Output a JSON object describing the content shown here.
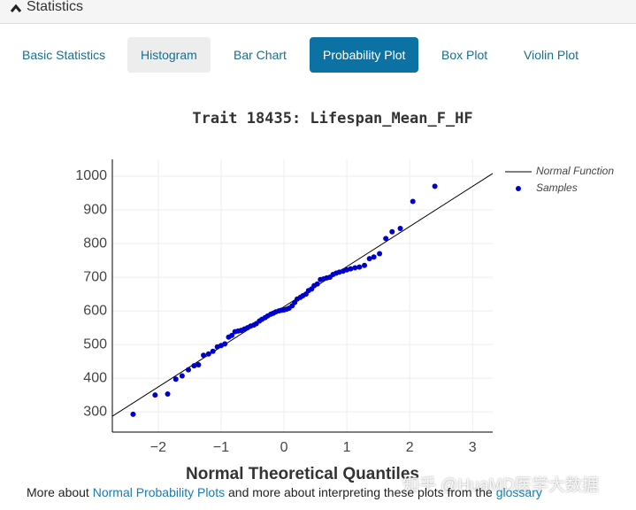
{
  "header": {
    "title": "Statistics"
  },
  "tabs": [
    "Basic Statistics",
    "Histogram",
    "Bar Chart",
    "Probability Plot",
    "Box Plot",
    "Violin Plot"
  ],
  "chart_data": {
    "type": "scatter",
    "title": "Trait 18435: Lifespan_Mean_F_HF",
    "x_label": "Normal Theoretical Quantiles",
    "xlim": [
      -2.73,
      3.32
    ],
    "ylim": [
      240,
      1050
    ],
    "xticks": [
      {
        "value": -2,
        "label": "−2"
      },
      {
        "value": -1,
        "label": "−1"
      },
      0,
      1,
      2,
      3
    ],
    "yticks": [
      300,
      400,
      500,
      600,
      700,
      800,
      900,
      1000
    ],
    "grid": true,
    "legend": "top-right",
    "series": [
      {
        "name": "Normal Function",
        "mode": "lines",
        "color": "#000000",
        "x": [
          -2.73,
          3.32
        ],
        "values": [
          287,
          1008
        ]
      },
      {
        "name": "Samples",
        "mode": "markers",
        "color": "#0000cc",
        "x": [
          -2.4,
          -2.05,
          -1.85,
          -1.72,
          -1.62,
          -1.52,
          -1.43,
          -1.36,
          -1.28,
          -1.2,
          -1.13,
          -1.06,
          -1.0,
          -0.94,
          -0.88,
          -0.83,
          -0.78,
          -0.73,
          -0.68,
          -0.63,
          -0.58,
          -0.53,
          -0.48,
          -0.44,
          -0.39,
          -0.35,
          -0.3,
          -0.26,
          -0.21,
          -0.17,
          -0.13,
          -0.08,
          -0.04,
          0,
          0.04,
          0.08,
          0.13,
          0.17,
          0.21,
          0.26,
          0.3,
          0.35,
          0.39,
          0.44,
          0.48,
          0.53,
          0.58,
          0.63,
          0.68,
          0.73,
          0.78,
          0.83,
          0.88,
          0.94,
          1.0,
          1.06,
          1.13,
          1.2,
          1.28,
          1.36,
          1.43,
          1.52,
          1.62,
          1.72,
          1.85,
          2.05,
          2.4
        ],
        "values": [
          293,
          350,
          353,
          397,
          407,
          425,
          437,
          440,
          468,
          472,
          480,
          493,
          497,
          502,
          522,
          527,
          538,
          540,
          542,
          546,
          550,
          555,
          558,
          562,
          570,
          575,
          580,
          585,
          590,
          593,
          597,
          600,
          602,
          603,
          605,
          608,
          615,
          625,
          635,
          640,
          645,
          650,
          660,
          665,
          675,
          680,
          693,
          695,
          698,
          700,
          708,
          712,
          715,
          718,
          722,
          725,
          728,
          730,
          735,
          755,
          760,
          770,
          815,
          835,
          845,
          925,
          970
        ]
      }
    ]
  },
  "footer": {
    "text_before": "More about",
    "link1": "Normal Probability Plots",
    "text_middle": "and more about interpreting these plots from the",
    "link2": "glossary"
  },
  "watermark": "知乎 @HuaMD医学大数据"
}
